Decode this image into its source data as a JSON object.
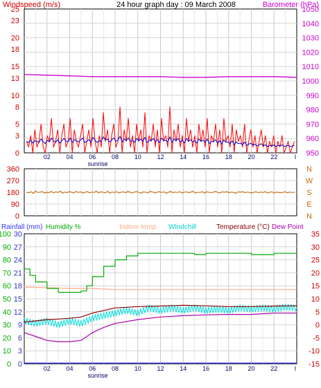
{
  "title": "24 hour graph day : 09 March 2008",
  "x_tick_labels": [
    "02",
    "04",
    "06",
    "08",
    "10",
    "12",
    "14",
    "16",
    "18",
    "20",
    "22",
    "I"
  ],
  "sunrise_label": "sunrise",
  "colors": {
    "windspeed": "#ff0000",
    "wind_avg": "#0000cc",
    "barometer": "#cc00cc",
    "wind_direction": "#cc6600",
    "rainfall": "#3333ff",
    "humidity": "#00aa00",
    "indoor_temp": "#ffaa88",
    "windchill": "#00dddd",
    "temperature": "#880000",
    "dew_point": "#aa00aa",
    "axis_label_red": "#cc0000",
    "axis_label_blue": "#3333cc",
    "axis_label_green": "#00aa00"
  },
  "chart_data": [
    {
      "type": "line",
      "name": "wind-barometer",
      "legend_left": "Windspeed (m/s)",
      "legend_right": "Barometer (hPa)",
      "left_axis": {
        "ticks": [
          0,
          3,
          5,
          8,
          10,
          13,
          15,
          18,
          20,
          23,
          25
        ],
        "ylim": [
          0,
          25
        ]
      },
      "right_axis": {
        "ticks": [
          950,
          960,
          970,
          980,
          990,
          1000,
          1010,
          1020,
          1030,
          1040,
          1050
        ],
        "ylim": [
          950,
          1050
        ]
      },
      "xlim": [
        0,
        24
      ],
      "windspeed_samples": [
        2,
        1,
        3,
        0,
        4,
        1,
        2,
        5,
        1,
        0,
        3,
        2,
        6,
        1,
        2,
        4,
        0,
        3,
        5,
        1,
        2,
        6,
        0,
        4,
        2,
        1,
        3,
        5,
        0,
        2,
        4,
        1,
        6,
        2,
        0,
        3,
        1,
        7,
        2,
        4,
        0,
        3,
        5,
        1,
        2,
        8,
        0,
        4,
        2,
        6,
        1,
        3,
        0,
        5,
        2,
        4,
        1,
        7,
        0,
        3,
        2,
        5,
        1,
        4,
        0,
        6,
        2,
        3,
        1,
        8,
        0,
        4,
        2,
        5,
        1,
        3,
        0,
        6,
        2,
        4,
        1,
        3,
        0,
        5,
        2,
        4,
        1,
        6,
        0,
        3,
        2,
        5,
        1,
        4,
        0,
        6,
        2,
        3,
        1,
        5,
        0,
        4,
        2,
        3,
        1,
        5,
        0,
        2,
        4,
        1,
        3,
        0,
        2,
        4,
        1,
        3,
        0,
        2,
        1,
        3,
        0,
        2,
        1,
        3,
        0,
        1,
        2,
        0,
        1,
        2
      ],
      "wind_avg_samples": [
        2,
        1.8,
        2.2,
        1.7,
        2.1,
        2,
        1.8,
        2.4,
        2,
        1.6,
        2.2,
        1.9,
        2.6,
        2.1,
        1.8,
        2.3,
        1.7,
        2.1,
        2.5,
        2,
        1.9,
        2.6,
        1.8,
        2.3,
        2.1,
        1.9,
        2.2,
        2.6,
        1.8,
        2,
        2.3,
        1.9,
        2.7,
        2.2,
        1.8,
        2.1,
        2,
        2.8,
        2.2,
        2.4,
        1.9,
        2.2,
        2.6,
        2,
        2.2,
        2.9,
        1.9,
        2.4,
        2.1,
        2.6,
        2,
        2.2,
        1.8,
        2.5,
        2.1,
        2.4,
        2,
        2.7,
        1.8,
        2.2,
        2.1,
        2.5,
        1.9,
        2.3,
        1.8,
        2.6,
        2.1,
        2.2,
        1.9,
        2.8,
        1.8,
        2.4,
        2.1,
        2.5,
        1.9,
        2.2,
        1.7,
        2.5,
        2,
        2.3,
        1.9,
        2.1,
        1.7,
        2.4,
        2,
        2.2,
        1.8,
        2.4,
        1.6,
        2,
        1.9,
        2.3,
        1.7,
        2.1,
        1.5,
        2.3,
        1.8,
        1.9,
        1.6,
        2.1,
        1.4,
        1.9,
        1.6,
        1.7,
        1.4,
        1.9,
        1.3,
        1.5,
        1.7,
        1.3,
        1.5,
        1.2,
        1.4,
        1.6,
        1.2,
        1.4,
        1.1,
        1.3,
        1.2,
        1.4,
        1.1,
        1.3,
        1.2,
        1.4,
        1.1,
        1.2,
        1.3,
        1.1,
        1.2,
        1.3
      ],
      "barometer_points": [
        [
          0,
          1004.5
        ],
        [
          2,
          1004
        ],
        [
          4,
          1003.5
        ],
        [
          6,
          1003
        ],
        [
          8,
          1003
        ],
        [
          10,
          1003
        ],
        [
          12,
          1003
        ],
        [
          14,
          1002.5
        ],
        [
          16,
          1002.5
        ],
        [
          18,
          1003
        ],
        [
          20,
          1003
        ],
        [
          22,
          1003
        ],
        [
          24,
          1002.5
        ]
      ]
    },
    {
      "type": "line",
      "name": "wind-direction",
      "left_axis": {
        "ticks": [
          0,
          90,
          180,
          270,
          360
        ],
        "ylim": [
          0,
          360
        ]
      },
      "right_axis_labels": [
        "N",
        "W",
        "S",
        "E",
        "N"
      ],
      "xlim": [
        0,
        24
      ],
      "direction_samples": [
        180,
        175,
        185,
        170,
        190,
        178,
        182,
        186,
        172,
        180,
        176,
        188,
        174,
        184,
        178,
        190,
        172,
        182,
        176,
        186,
        180,
        174,
        188,
        178,
        184,
        172,
        180,
        186,
        176,
        182,
        178,
        190,
        174,
        184,
        180,
        176,
        188,
        172,
        182,
        178,
        186,
        174,
        180,
        184,
        176,
        188,
        180,
        174,
        182,
        186,
        178,
        172,
        184,
        180,
        176,
        188,
        182,
        174,
        180,
        186,
        178,
        184,
        172,
        180,
        188,
        176,
        182,
        178,
        186,
        174,
        180,
        184,
        176,
        182,
        188,
        174,
        180,
        178,
        186,
        172,
        184,
        180,
        176,
        182,
        188,
        178,
        174,
        184,
        180,
        186,
        176,
        182,
        178,
        172,
        184,
        180,
        186,
        176,
        182,
        178,
        174,
        180,
        184,
        176,
        182,
        178,
        186,
        174,
        180,
        184,
        172,
        182,
        178,
        176,
        180,
        184,
        174,
        182,
        178,
        180
      ]
    },
    {
      "type": "line",
      "name": "temp-humidity",
      "legend": [
        "Rainfall (mm)",
        "Humidity %",
        "Indoor temp",
        "Windchill",
        "Temperature (°C)",
        "Dew Point"
      ],
      "rainfall_axis": {
        "ticks": [
          0,
          3,
          6,
          9,
          12,
          15,
          18,
          21,
          24,
          27,
          30
        ],
        "ylim": [
          0,
          30
        ]
      },
      "humidity_axis": {
        "ticks": [
          0,
          10,
          20,
          30,
          40,
          50,
          60,
          70,
          80,
          90,
          100
        ],
        "ylim": [
          0,
          100
        ]
      },
      "temperature_axis": {
        "ticks": [
          -15,
          -10,
          -5,
          0,
          5,
          10,
          15,
          20,
          25,
          30,
          35
        ],
        "ylim": [
          -15,
          35
        ]
      },
      "xlim": [
        0,
        24
      ],
      "humidity_points": [
        [
          0,
          73
        ],
        [
          0.5,
          68
        ],
        [
          1,
          63
        ],
        [
          2,
          58
        ],
        [
          3,
          55
        ],
        [
          4,
          55
        ],
        [
          5,
          56
        ],
        [
          5.5,
          60
        ],
        [
          6,
          67
        ],
        [
          7,
          75
        ],
        [
          8,
          80
        ],
        [
          9,
          83
        ],
        [
          10,
          85
        ],
        [
          14,
          85
        ],
        [
          15,
          84
        ],
        [
          16,
          85
        ],
        [
          18,
          85
        ],
        [
          20,
          84
        ],
        [
          22,
          85
        ],
        [
          24,
          85
        ]
      ],
      "indoor_temp_points": [
        [
          0,
          14.5
        ],
        [
          4,
          14
        ],
        [
          6,
          14
        ],
        [
          8,
          13.5
        ],
        [
          12,
          13.5
        ],
        [
          16,
          13.5
        ],
        [
          20,
          13.5
        ],
        [
          24,
          13.5
        ]
      ],
      "temperature_points": [
        [
          0,
          1
        ],
        [
          1,
          1.5
        ],
        [
          2,
          2
        ],
        [
          3,
          2.2
        ],
        [
          4,
          2.5
        ],
        [
          5,
          3
        ],
        [
          6,
          4.5
        ],
        [
          7,
          5.5
        ],
        [
          8,
          6.5
        ],
        [
          10,
          7
        ],
        [
          12,
          7.2
        ],
        [
          14,
          7.5
        ],
        [
          16,
          7.3
        ],
        [
          18,
          7
        ],
        [
          20,
          7
        ],
        [
          22,
          7.2
        ],
        [
          24,
          7.3
        ]
      ],
      "windchill_points": [
        [
          0,
          1.5
        ],
        [
          1,
          0.5
        ],
        [
          2,
          1.5
        ],
        [
          3,
          0
        ],
        [
          4,
          1.5
        ],
        [
          5,
          0.5
        ],
        [
          6,
          2.5
        ],
        [
          7,
          3.5
        ],
        [
          8,
          4.5
        ],
        [
          9,
          5.5
        ],
        [
          10,
          4.5
        ],
        [
          11,
          6.5
        ],
        [
          12,
          5.5
        ],
        [
          13,
          6.5
        ],
        [
          14,
          5.5
        ],
        [
          15,
          6.5
        ],
        [
          16,
          5.5
        ],
        [
          17,
          6
        ],
        [
          18,
          5.5
        ],
        [
          19,
          6.5
        ],
        [
          20,
          6
        ],
        [
          21,
          6.5
        ],
        [
          22,
          6
        ],
        [
          23,
          6.8
        ],
        [
          24,
          6.5
        ]
      ],
      "dew_point_points": [
        [
          0,
          -3
        ],
        [
          1,
          -4.5
        ],
        [
          2,
          -6
        ],
        [
          3,
          -6.5
        ],
        [
          4,
          -6.5
        ],
        [
          5,
          -6
        ],
        [
          6,
          -3
        ],
        [
          7,
          -1
        ],
        [
          8,
          0.5
        ],
        [
          10,
          2
        ],
        [
          12,
          3
        ],
        [
          14,
          3.5
        ],
        [
          16,
          3.8
        ],
        [
          18,
          4
        ],
        [
          20,
          4
        ],
        [
          22,
          4.5
        ],
        [
          24,
          4.5
        ]
      ],
      "rainfall_points": [
        [
          0,
          0
        ],
        [
          24,
          0
        ]
      ]
    }
  ]
}
